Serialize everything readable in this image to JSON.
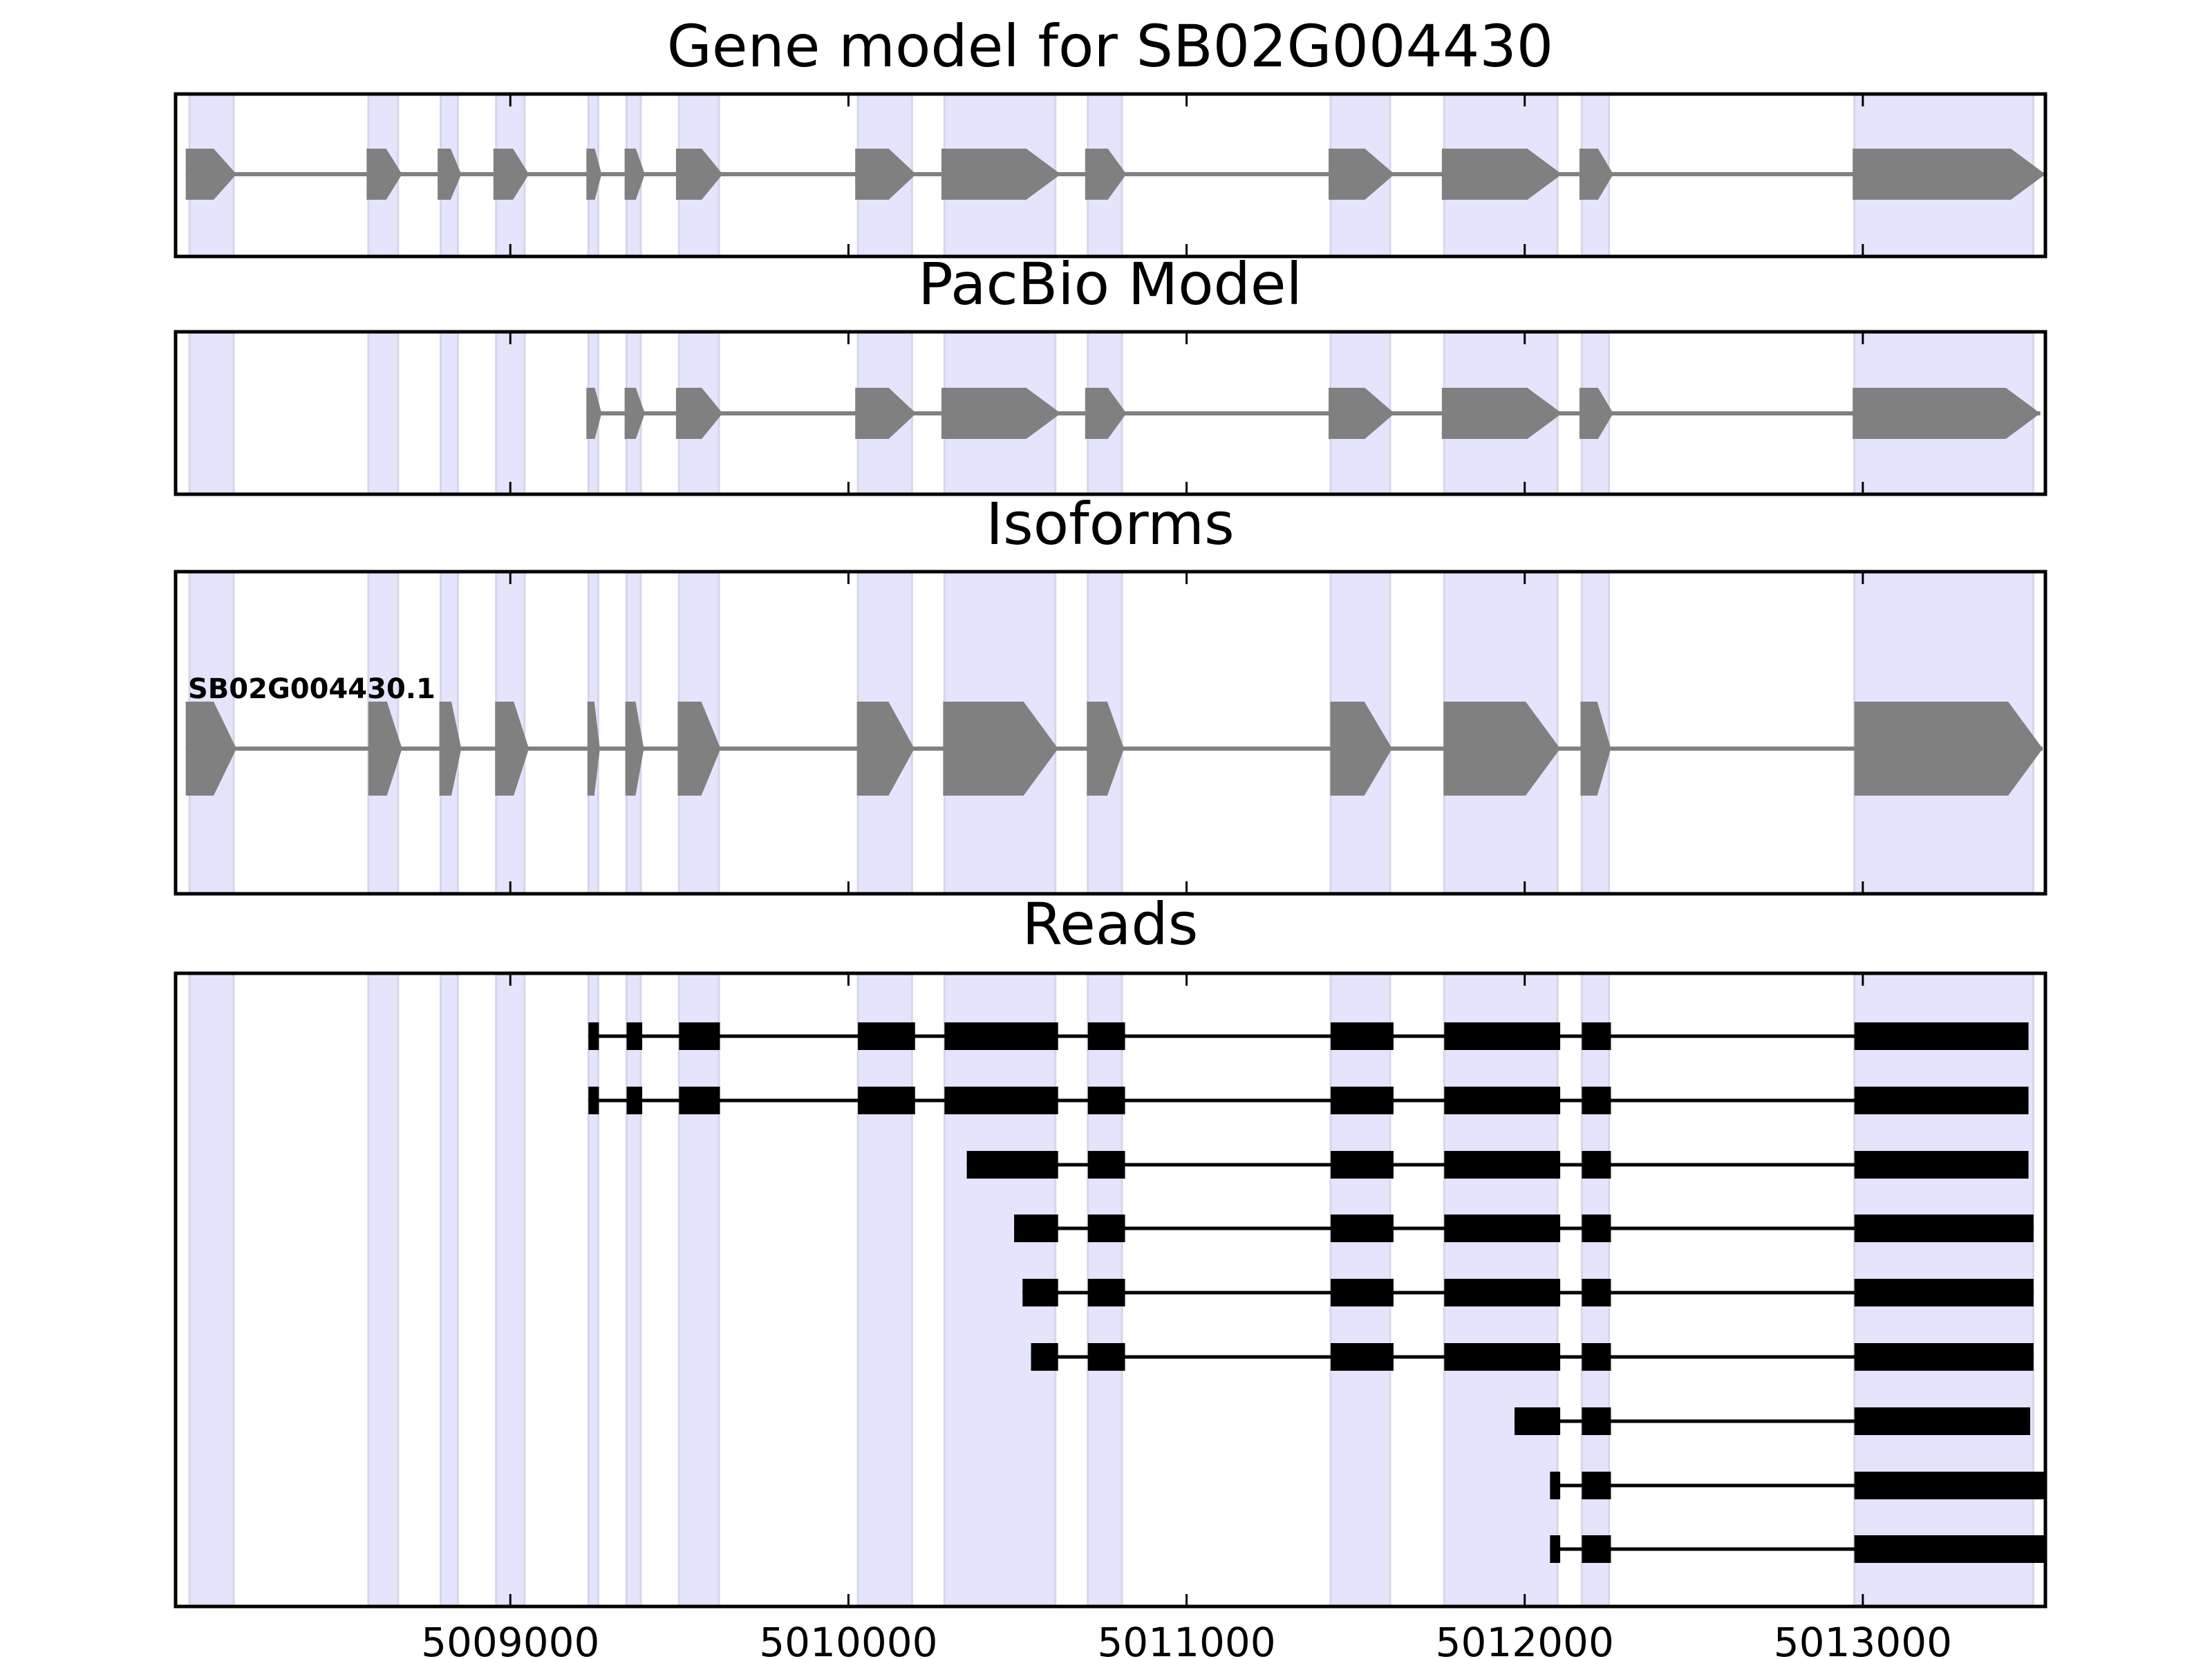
{
  "chart_data": {
    "type": "gene-structure",
    "xlim": [
      5008010,
      5013540
    ],
    "xticks": [
      5009000,
      5010000,
      5011000,
      5012000,
      5013000
    ],
    "xtick_labels": [
      "5009000",
      "5010000",
      "5011000",
      "5012000",
      "5013000"
    ],
    "colors": {
      "shade": "#e4e4fc",
      "shade_edge": "#d6d6ea",
      "model": "#808080",
      "read": "#000000",
      "axis": "#000000"
    },
    "shaded_regions": [
      [
        5008051,
        5008182
      ],
      [
        5008580,
        5008668
      ],
      [
        5008794,
        5008845
      ],
      [
        5008958,
        5009042
      ],
      [
        5009231,
        5009260
      ],
      [
        5009344,
        5009386
      ],
      [
        5009499,
        5009617
      ],
      [
        5010028,
        5010188
      ],
      [
        5010284,
        5010612
      ],
      [
        5010708,
        5010809
      ],
      [
        5011426,
        5011602
      ],
      [
        5011762,
        5012097
      ],
      [
        5012169,
        5012249
      ],
      [
        5012975,
        5013504
      ]
    ],
    "panels": [
      {
        "title": "Gene model for SB02G004430",
        "kind": "model",
        "exons": [
          [
            5008040,
            5008190
          ],
          [
            5008575,
            5008680
          ],
          [
            5008785,
            5008855
          ],
          [
            5008950,
            5009055
          ],
          [
            5009225,
            5009270
          ],
          [
            5009338,
            5009398
          ],
          [
            5009490,
            5009628
          ],
          [
            5010020,
            5010200
          ],
          [
            5010275,
            5010628
          ],
          [
            5010700,
            5010822
          ],
          [
            5011420,
            5011615
          ],
          [
            5011755,
            5012110
          ],
          [
            5012162,
            5012262
          ],
          [
            5012970,
            5013540
          ]
        ]
      },
      {
        "title": "PacBio Model",
        "kind": "model",
        "exons": [
          [
            5009225,
            5009270
          ],
          [
            5009338,
            5009398
          ],
          [
            5009490,
            5009628
          ],
          [
            5010020,
            5010200
          ],
          [
            5010275,
            5010628
          ],
          [
            5010700,
            5010822
          ],
          [
            5011420,
            5011615
          ],
          [
            5011755,
            5012110
          ],
          [
            5012162,
            5012262
          ],
          [
            5012970,
            5013525
          ]
        ]
      },
      {
        "title": "Isoforms",
        "kind": "isoform",
        "isoform_label": "SB02G004430.1",
        "exons": [
          [
            5008040,
            5008190
          ],
          [
            5008580,
            5008680
          ],
          [
            5008790,
            5008855
          ],
          [
            5008955,
            5009055
          ],
          [
            5009228,
            5009265
          ],
          [
            5009340,
            5009395
          ],
          [
            5009495,
            5009622
          ],
          [
            5010025,
            5010195
          ],
          [
            5010280,
            5010620
          ],
          [
            5010705,
            5010815
          ],
          [
            5011425,
            5011608
          ],
          [
            5011760,
            5012105
          ],
          [
            5012165,
            5012255
          ],
          [
            5012975,
            5013532
          ]
        ]
      },
      {
        "title": "Reads",
        "kind": "reads",
        "reads": [
          [
            [
              5009231,
              5009262
            ],
            [
              5009344,
              5009390
            ],
            [
              5009499,
              5009620
            ],
            [
              5010028,
              5010197
            ],
            [
              5010284,
              5010620
            ],
            [
              5010708,
              5010818
            ],
            [
              5011426,
              5011612
            ],
            [
              5011762,
              5012105
            ],
            [
              5012169,
              5012255
            ],
            [
              5012975,
              5013490
            ]
          ],
          [
            [
              5009231,
              5009262
            ],
            [
              5009344,
              5009390
            ],
            [
              5009499,
              5009620
            ],
            [
              5010028,
              5010197
            ],
            [
              5010284,
              5010620
            ],
            [
              5010708,
              5010818
            ],
            [
              5011426,
              5011612
            ],
            [
              5011762,
              5012105
            ],
            [
              5012169,
              5012255
            ],
            [
              5012975,
              5013490
            ]
          ],
          [
            [
              5010350,
              5010620
            ],
            [
              5010708,
              5010818
            ],
            [
              5011426,
              5011612
            ],
            [
              5011762,
              5012105
            ],
            [
              5012169,
              5012255
            ],
            [
              5012975,
              5013490
            ]
          ],
          [
            [
              5010490,
              5010620
            ],
            [
              5010708,
              5010818
            ],
            [
              5011426,
              5011612
            ],
            [
              5011762,
              5012105
            ],
            [
              5012169,
              5012255
            ],
            [
              5012975,
              5013505
            ]
          ],
          [
            [
              5010515,
              5010620
            ],
            [
              5010708,
              5010818
            ],
            [
              5011426,
              5011612
            ],
            [
              5011762,
              5012105
            ],
            [
              5012169,
              5012255
            ],
            [
              5012975,
              5013505
            ]
          ],
          [
            [
              5010540,
              5010620
            ],
            [
              5010708,
              5010818
            ],
            [
              5011426,
              5011612
            ],
            [
              5011762,
              5012105
            ],
            [
              5012169,
              5012255
            ],
            [
              5012975,
              5013505
            ]
          ],
          [
            [
              5011970,
              5012105
            ],
            [
              5012169,
              5012255
            ],
            [
              5012975,
              5013495
            ]
          ],
          [
            [
              5012075,
              5012105
            ],
            [
              5012169,
              5012255
            ],
            [
              5012975,
              5013540
            ]
          ],
          [
            [
              5012075,
              5012105
            ],
            [
              5012169,
              5012255
            ],
            [
              5012975,
              5013540
            ]
          ]
        ]
      }
    ]
  }
}
